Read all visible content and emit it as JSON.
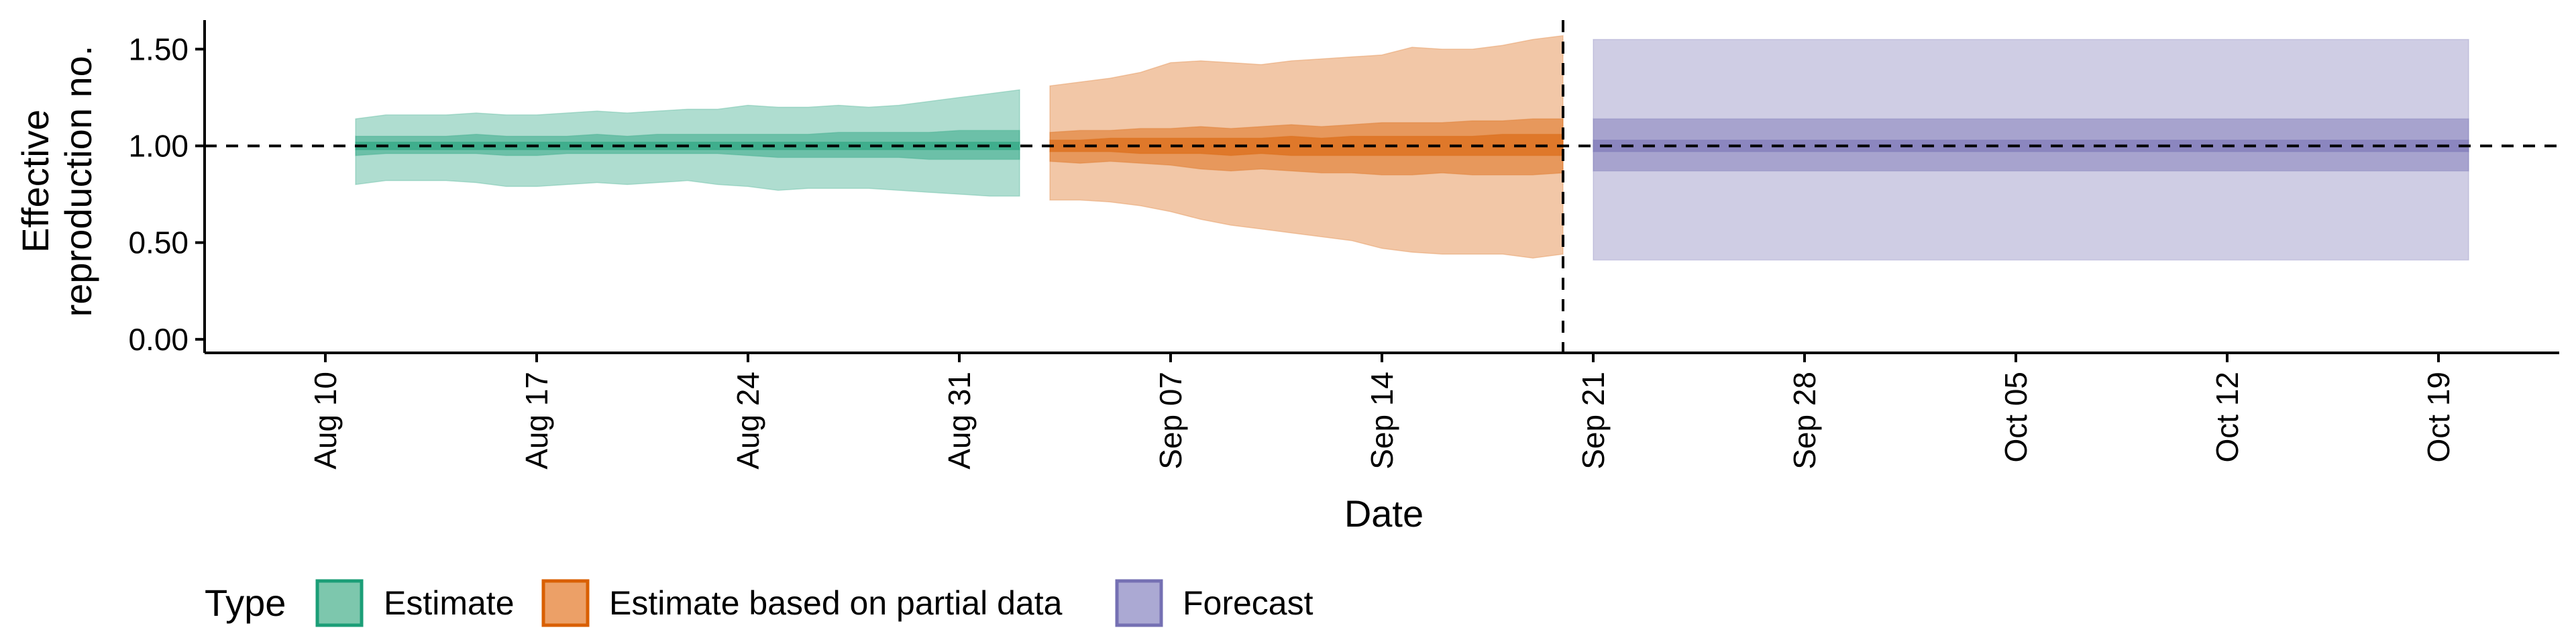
{
  "chart_data": {
    "type": "area",
    "title": "",
    "xlabel": "Date",
    "ylabel_lines": [
      "Effective",
      "reproduction no."
    ],
    "ylim": [
      -0.07,
      1.65
    ],
    "xlim": [
      "2020-08-06",
      "2020-10-23"
    ],
    "y_ticks": [
      0,
      0.5,
      1.0,
      1.5
    ],
    "y_tick_labels": [
      "0.00",
      "0.50",
      "1.00",
      "1.50"
    ],
    "x_ticks": [
      "2020-08-10",
      "2020-08-17",
      "2020-08-24",
      "2020-08-31",
      "2020-09-07",
      "2020-09-14",
      "2020-09-21",
      "2020-09-28",
      "2020-10-05",
      "2020-10-12",
      "2020-10-19"
    ],
    "x_tick_labels": [
      "Aug 10",
      "Aug 17",
      "Aug 24",
      "Aug 31",
      "Sep 07",
      "Sep 14",
      "Sep 21",
      "Sep 28",
      "Oct 05",
      "Oct 12",
      "Oct 19"
    ],
    "reference_line_y": 1.0,
    "vertical_line_x": "2020-09-20",
    "legend": {
      "title": "Type",
      "position": "bottom",
      "entries": [
        {
          "name": "Estimate",
          "fill": "#7dc7ad",
          "border": "#1b9e77"
        },
        {
          "name": "Estimate based on partial data",
          "fill": "#eca067",
          "border": "#d95f02"
        },
        {
          "name": "Forecast",
          "fill": "#aba9d3",
          "border": "#7570b3"
        }
      ]
    },
    "series": [
      {
        "name": "Estimate",
        "color": "#1b9e77",
        "x": [
          "2020-08-11",
          "2020-08-12",
          "2020-08-13",
          "2020-08-14",
          "2020-08-15",
          "2020-08-16",
          "2020-08-17",
          "2020-08-18",
          "2020-08-19",
          "2020-08-20",
          "2020-08-21",
          "2020-08-22",
          "2020-08-23",
          "2020-08-24",
          "2020-08-25",
          "2020-08-26",
          "2020-08-27",
          "2020-08-28",
          "2020-08-29",
          "2020-08-30",
          "2020-08-31",
          "2020-09-01",
          "2020-09-02"
        ],
        "lower90": [
          0.8,
          0.82,
          0.82,
          0.82,
          0.81,
          0.79,
          0.79,
          0.8,
          0.81,
          0.8,
          0.81,
          0.82,
          0.8,
          0.79,
          0.77,
          0.78,
          0.78,
          0.78,
          0.77,
          0.76,
          0.75,
          0.74,
          0.74
        ],
        "upper90": [
          1.14,
          1.16,
          1.16,
          1.16,
          1.17,
          1.16,
          1.16,
          1.17,
          1.18,
          1.17,
          1.18,
          1.19,
          1.19,
          1.21,
          1.2,
          1.2,
          1.21,
          1.2,
          1.21,
          1.23,
          1.25,
          1.27,
          1.29
        ],
        "lower50": [
          0.95,
          0.96,
          0.96,
          0.96,
          0.96,
          0.95,
          0.95,
          0.96,
          0.96,
          0.96,
          0.96,
          0.96,
          0.96,
          0.95,
          0.94,
          0.94,
          0.94,
          0.94,
          0.94,
          0.93,
          0.93,
          0.93,
          0.93
        ],
        "upper50": [
          1.05,
          1.05,
          1.05,
          1.05,
          1.06,
          1.05,
          1.05,
          1.05,
          1.06,
          1.05,
          1.06,
          1.06,
          1.06,
          1.06,
          1.06,
          1.06,
          1.07,
          1.07,
          1.07,
          1.07,
          1.08,
          1.08,
          1.08
        ],
        "lower20": [
          0.98,
          0.98,
          0.98,
          0.98,
          0.98,
          0.98,
          0.98,
          0.98,
          0.98,
          0.98,
          0.98,
          0.98,
          0.98,
          0.98,
          0.98,
          0.98,
          0.98,
          0.98,
          0.98,
          0.98,
          0.98,
          0.98,
          0.98
        ],
        "upper20": [
          1.02,
          1.02,
          1.02,
          1.02,
          1.02,
          1.02,
          1.02,
          1.02,
          1.02,
          1.02,
          1.02,
          1.02,
          1.02,
          1.02,
          1.02,
          1.02,
          1.02,
          1.02,
          1.02,
          1.02,
          1.02,
          1.02,
          1.02
        ]
      },
      {
        "name": "Estimate based on partial data",
        "color": "#d95f02",
        "x": [
          "2020-09-03",
          "2020-09-04",
          "2020-09-05",
          "2020-09-06",
          "2020-09-07",
          "2020-09-08",
          "2020-09-09",
          "2020-09-10",
          "2020-09-11",
          "2020-09-12",
          "2020-09-13",
          "2020-09-14",
          "2020-09-15",
          "2020-09-16",
          "2020-09-17",
          "2020-09-18",
          "2020-09-19",
          "2020-09-20"
        ],
        "lower90": [
          0.72,
          0.72,
          0.71,
          0.69,
          0.66,
          0.62,
          0.59,
          0.57,
          0.55,
          0.53,
          0.51,
          0.47,
          0.45,
          0.44,
          0.44,
          0.44,
          0.42,
          0.44
        ],
        "upper90": [
          1.31,
          1.33,
          1.35,
          1.38,
          1.43,
          1.44,
          1.43,
          1.42,
          1.44,
          1.45,
          1.46,
          1.47,
          1.51,
          1.5,
          1.5,
          1.52,
          1.55,
          1.57
        ],
        "lower50": [
          0.92,
          0.91,
          0.92,
          0.91,
          0.9,
          0.88,
          0.87,
          0.88,
          0.87,
          0.86,
          0.86,
          0.85,
          0.85,
          0.86,
          0.85,
          0.85,
          0.85,
          0.86
        ],
        "upper50": [
          1.07,
          1.08,
          1.08,
          1.09,
          1.09,
          1.1,
          1.09,
          1.1,
          1.11,
          1.1,
          1.11,
          1.12,
          1.12,
          1.12,
          1.13,
          1.13,
          1.14,
          1.14
        ],
        "lower20": [
          0.97,
          0.97,
          0.97,
          0.96,
          0.96,
          0.96,
          0.95,
          0.96,
          0.95,
          0.95,
          0.95,
          0.95,
          0.95,
          0.95,
          0.95,
          0.95,
          0.95,
          0.95
        ],
        "upper20": [
          1.03,
          1.03,
          1.04,
          1.04,
          1.04,
          1.04,
          1.04,
          1.04,
          1.05,
          1.04,
          1.05,
          1.05,
          1.05,
          1.05,
          1.05,
          1.06,
          1.06,
          1.06
        ]
      },
      {
        "name": "Forecast",
        "color": "#7570b3",
        "x": [
          "2020-09-21",
          "2020-10-20"
        ],
        "lower90": [
          0.41,
          0.41
        ],
        "upper90": [
          1.55,
          1.55
        ],
        "lower50": [
          0.87,
          0.87
        ],
        "upper50": [
          1.14,
          1.14
        ],
        "lower20": [
          0.97,
          0.97
        ],
        "upper20": [
          1.03,
          1.03
        ]
      }
    ]
  }
}
